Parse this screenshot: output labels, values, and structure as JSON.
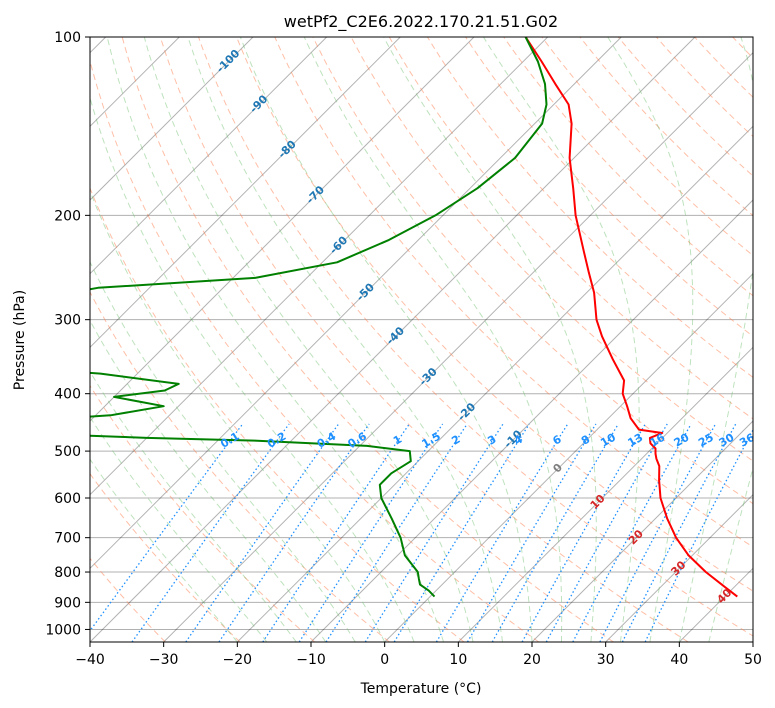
{
  "chart_data": {
    "type": "line",
    "subtype": "skew-t log-p",
    "title": "wetPf2_C2E6.2022.170.21.51.G02",
    "xlabel": "Temperature (°C)",
    "ylabel": "Pressure (hPa)",
    "xlim": [
      -40,
      50
    ],
    "ylim": [
      1050,
      100
    ],
    "y_scale": "log",
    "grid": true,
    "x_ticks": [
      "−40",
      "−30",
      "−20",
      "−10",
      "0",
      "10",
      "20",
      "30",
      "40",
      "50"
    ],
    "x_tick_values": [
      -40,
      -30,
      -20,
      -10,
      0,
      10,
      20,
      30,
      40,
      50
    ],
    "y_ticks": [
      "100",
      "200",
      "300",
      "400",
      "500",
      "600",
      "700",
      "800",
      "900",
      "1000"
    ],
    "y_tick_values": [
      100,
      200,
      300,
      400,
      500,
      600,
      700,
      800,
      900,
      1000
    ],
    "colors": {
      "temperature": "#ff0000",
      "dewpoint": "#008000",
      "isotherm": "#000000",
      "dry_adiabat": "#ff7f50",
      "moist_adiabat": "#6fbf6f",
      "mixing_ratio": "#1e90ff",
      "grid": "#b0b0b0",
      "isotherm_label_cold": "#1f77b4",
      "isotherm_label_zero": "#7f7f7f",
      "isotherm_label_warm": "#d62728"
    },
    "series": [
      {
        "key": "temperature",
        "pressure": [
          880,
          850,
          800,
          750,
          700,
          650,
          600,
          560,
          530,
          515,
          505,
          495,
          485,
          475,
          466,
          460,
          440,
          420,
          400,
          380,
          350,
          320,
          300,
          270,
          250,
          230,
          200,
          180,
          160,
          140,
          130,
          120,
          110,
          100
        ],
        "x": [
          41.7,
          38.9,
          34.1,
          29.5,
          25.4,
          21.6,
          17.9,
          15.3,
          13.4,
          12.0,
          11.2,
          10.5,
          9.1,
          8.3,
          9.3,
          5.7,
          3.0,
          0.9,
          -1.4,
          -3.0,
          -7.4,
          -12.0,
          -15.0,
          -19.0,
          -22.4,
          -26.0,
          -32.0,
          -36.0,
          -40.6,
          -45.0,
          -48.0,
          -52.6,
          -57.5,
          -63.0
        ]
      },
      {
        "key": "dewpoint",
        "pressure": [
          880,
          860,
          840,
          820,
          800,
          750,
          700,
          650,
          600,
          570,
          545,
          520,
          500,
          490,
          480,
          475,
          470,
          465,
          460,
          455,
          445,
          435,
          420,
          405,
          395,
          385,
          370,
          360,
          340,
          320,
          300,
          285,
          270,
          265,
          255,
          240,
          220,
          200,
          180,
          160,
          140,
          130,
          120,
          110,
          100
        ],
        "x": [
          0.6,
          -1.0,
          -3.0,
          -4.0,
          -5.0,
          -9.0,
          -12.0,
          -15.8,
          -20.0,
          -22.0,
          -22.0,
          -21.0,
          -22.5,
          -29.0,
          -45.0,
          -60.0,
          -70.0,
          -75.0,
          -72.0,
          -80.0,
          -79.0,
          -68.0,
          -62.0,
          -70.0,
          -64.0,
          -63.0,
          -75.0,
          -90.0,
          -100.0,
          -105.0,
          -100.0,
          -94.0,
          -90.0,
          -87.0,
          -67.0,
          -58.0,
          -54.0,
          -51.0,
          -49.0,
          -48.0,
          -49.0,
          -51.0,
          -54.0,
          -58.0,
          -63.0
        ]
      }
    ],
    "isotherm_labels": {
      "cold": [
        "-100",
        "-90",
        "-80",
        "-70",
        "-60",
        "-50",
        "-40",
        "-30",
        "-20",
        "-10"
      ],
      "zero": [
        "0"
      ],
      "warm": [
        "10",
        "20",
        "30",
        "40"
      ],
      "temps_cold": [
        -100,
        -90,
        -80,
        -70,
        -60,
        -50,
        -40,
        -30,
        -20,
        -10
      ],
      "temps_warm": [
        10,
        20,
        30,
        40
      ]
    },
    "mixing_ratio_labels": [
      "0.1",
      "0.2",
      "0.4",
      "0.6",
      "1",
      "1.5",
      "2",
      "3",
      "4",
      "6",
      "8",
      "10",
      "13",
      "16",
      "20",
      "25",
      "30",
      "36"
    ],
    "mixing_ratio_values": [
      0.1,
      0.2,
      0.4,
      0.6,
      1,
      1.5,
      2,
      3,
      4,
      6,
      8,
      10,
      13,
      16,
      20,
      25,
      30,
      36
    ]
  }
}
